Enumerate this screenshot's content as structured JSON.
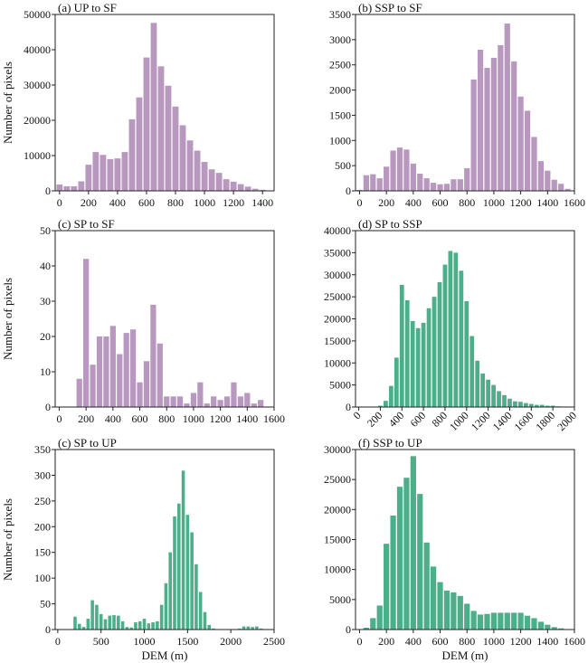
{
  "chart_data": [
    {
      "id": "a",
      "type": "bar",
      "title": "(a) UP to SF",
      "xlabel": "",
      "ylabel": "Number of pixels",
      "color": "#b998bf",
      "bin_width": 50,
      "xlim": [
        -30,
        1480
      ],
      "ylim": [
        0,
        50000
      ],
      "xticks": [
        0,
        200,
        400,
        600,
        800,
        1000,
        1200,
        1400
      ],
      "yticks": [
        0,
        10000,
        20000,
        30000,
        40000,
        50000
      ],
      "x": [
        0,
        50,
        100,
        150,
        200,
        250,
        300,
        350,
        400,
        450,
        500,
        550,
        600,
        650,
        700,
        750,
        800,
        850,
        900,
        950,
        1000,
        1050,
        1100,
        1150,
        1200,
        1250,
        1300,
        1350,
        1400
      ],
      "values": [
        1800,
        1300,
        1300,
        2700,
        7400,
        11000,
        10200,
        9000,
        9200,
        11000,
        20300,
        26500,
        37800,
        47600,
        35300,
        29800,
        23900,
        18600,
        14300,
        11400,
        8200,
        6100,
        5100,
        3300,
        2600,
        1900,
        1200,
        600,
        300
      ]
    },
    {
      "id": "b",
      "type": "bar",
      "title": "(b) SSP to SF",
      "xlabel": "",
      "ylabel": "",
      "color": "#b998bf",
      "bin_width": 50,
      "xlim": [
        -30,
        1600
      ],
      "ylim": [
        0,
        3500
      ],
      "xticks": [
        0,
        200,
        400,
        600,
        800,
        1000,
        1200,
        1400,
        1600
      ],
      "yticks": [
        0,
        500,
        1000,
        1500,
        2000,
        2500,
        3000,
        3500
      ],
      "x": [
        0,
        50,
        100,
        150,
        200,
        250,
        300,
        350,
        400,
        450,
        500,
        550,
        600,
        650,
        700,
        750,
        800,
        850,
        900,
        950,
        1000,
        1050,
        1100,
        1150,
        1200,
        1250,
        1300,
        1350,
        1400,
        1450,
        1500,
        1550
      ],
      "values": [
        20,
        310,
        330,
        250,
        480,
        800,
        860,
        820,
        540,
        340,
        250,
        160,
        130,
        140,
        230,
        230,
        450,
        2210,
        2800,
        2440,
        2640,
        2890,
        3320,
        2570,
        1870,
        1590,
        1070,
        590,
        400,
        220,
        140,
        40
      ]
    },
    {
      "id": "c",
      "type": "bar",
      "title": "(c) SP to SF",
      "xlabel": "",
      "ylabel": "Number of pixels",
      "color": "#b998bf",
      "bin_width": 50,
      "xlim": [
        -30,
        1600
      ],
      "ylim": [
        0,
        50
      ],
      "xticks": [
        0,
        200,
        400,
        600,
        800,
        1000,
        1200,
        1400,
        1600
      ],
      "yticks": [
        0,
        10,
        20,
        30,
        40,
        50
      ],
      "x": [
        150,
        200,
        250,
        300,
        350,
        400,
        450,
        500,
        550,
        600,
        650,
        700,
        750,
        800,
        850,
        900,
        950,
        1000,
        1050,
        1100,
        1150,
        1200,
        1250,
        1300,
        1350,
        1400,
        1450,
        1500
      ],
      "values": [
        8,
        42,
        12,
        20,
        20,
        23,
        15,
        21,
        22,
        7,
        13,
        29,
        18,
        3,
        3,
        3,
        1,
        4,
        7,
        1,
        3,
        2,
        3,
        7,
        3,
        4,
        1,
        2
      ]
    },
    {
      "id": "d",
      "type": "bar",
      "title": "(d) SP to SSP",
      "xlabel": "",
      "ylabel": "",
      "color": "#4daf8a",
      "bin_width": 50,
      "xlim": [
        -30,
        2000
      ],
      "ylim": [
        0,
        40000
      ],
      "xticks": [
        0,
        200,
        400,
        600,
        800,
        1000,
        1200,
        1400,
        1600,
        1800,
        2000
      ],
      "xtick_rotation": -45,
      "yticks": [
        0,
        5000,
        10000,
        15000,
        20000,
        25000,
        30000,
        35000,
        40000
      ],
      "x": [
        150,
        200,
        250,
        300,
        350,
        400,
        450,
        500,
        550,
        600,
        650,
        700,
        750,
        800,
        850,
        900,
        950,
        1000,
        1050,
        1100,
        1150,
        1200,
        1250,
        1300,
        1350,
        1400,
        1450,
        1500,
        1550,
        1600,
        1650,
        1700,
        1750,
        1800,
        1850,
        1900,
        1950
      ],
      "values": [
        100,
        300,
        1400,
        4800,
        11200,
        27700,
        24200,
        19500,
        17900,
        19100,
        22400,
        25000,
        28300,
        32300,
        35400,
        35000,
        30900,
        24000,
        16100,
        10500,
        7600,
        6200,
        5000,
        3600,
        2700,
        1900,
        1300,
        1200,
        900,
        700,
        500,
        500,
        300,
        300,
        150,
        100,
        80
      ]
    },
    {
      "id": "e",
      "type": "bar",
      "title": "(c) SP to UP",
      "xlabel": "DEM (m)",
      "ylabel": "Number of pixels",
      "color": "#4daf8a",
      "bin_width": 50,
      "xlim": [
        -30,
        2500
      ],
      "ylim": [
        0,
        350
      ],
      "xticks": [
        0,
        500,
        1000,
        1500,
        2000,
        2500
      ],
      "yticks": [
        0,
        50,
        100,
        150,
        200,
        250,
        300,
        350
      ],
      "x": [
        200,
        250,
        300,
        350,
        400,
        450,
        500,
        550,
        600,
        650,
        700,
        750,
        800,
        850,
        900,
        950,
        1000,
        1050,
        1100,
        1150,
        1200,
        1250,
        1300,
        1350,
        1400,
        1450,
        1500,
        1550,
        1600,
        1650,
        1700,
        1750,
        1800,
        2100,
        2150,
        2200,
        2250,
        2300,
        2350
      ],
      "values": [
        25,
        11,
        5,
        21,
        57,
        48,
        30,
        20,
        27,
        28,
        27,
        16,
        5,
        4,
        14,
        16,
        21,
        12,
        14,
        16,
        48,
        90,
        150,
        220,
        245,
        309,
        223,
        189,
        127,
        73,
        34,
        9,
        2,
        2,
        6,
        6,
        5,
        6,
        2
      ]
    },
    {
      "id": "f",
      "type": "bar",
      "title": "(f) SSP to UP",
      "xlabel": "DEM (m)",
      "ylabel": "",
      "color": "#4daf8a",
      "bin_width": 50,
      "xlim": [
        -30,
        1600
      ],
      "ylim": [
        0,
        30000
      ],
      "xticks": [
        0,
        200,
        400,
        600,
        800,
        1000,
        1200,
        1400,
        1600
      ],
      "yticks": [
        0,
        5000,
        10000,
        15000,
        20000,
        25000,
        30000
      ],
      "x": [
        50,
        100,
        150,
        200,
        250,
        300,
        350,
        400,
        450,
        500,
        550,
        600,
        650,
        700,
        750,
        800,
        850,
        900,
        950,
        1000,
        1050,
        1100,
        1150,
        1200,
        1250,
        1300,
        1350,
        1400,
        1450,
        1500
      ],
      "values": [
        300,
        1900,
        4000,
        14300,
        19000,
        23800,
        25300,
        28900,
        22600,
        14500,
        10500,
        7900,
        6500,
        6200,
        5600,
        4300,
        3100,
        2500,
        2600,
        2800,
        2800,
        2800,
        2800,
        2800,
        2300,
        1900,
        1300,
        800,
        400,
        200
      ]
    }
  ]
}
